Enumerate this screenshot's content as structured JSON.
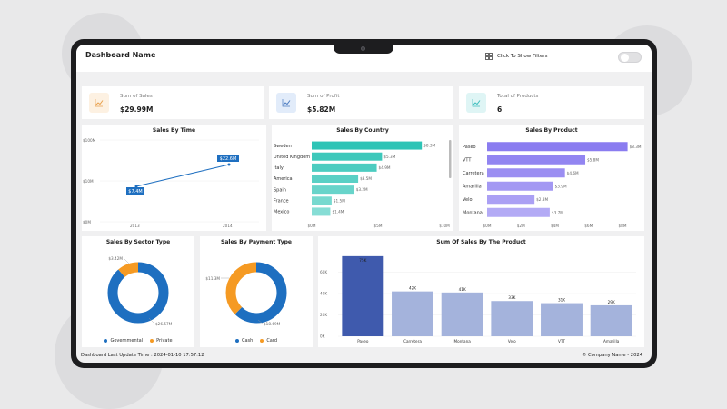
{
  "header": {
    "title": "Dashboard Name",
    "filter_label": "Click To Show Filters"
  },
  "kpis": [
    {
      "label": "Sum of Sales",
      "value": "$29.99M",
      "icon": "trend-chart-icon",
      "icon_bg": "#fdf1e2",
      "icon_color": "#e8a04c"
    },
    {
      "label": "Sum of Profit",
      "value": "$5.82M",
      "icon": "trend-chart-icon",
      "icon_bg": "#e2ecfa",
      "icon_color": "#4a7ac0"
    },
    {
      "label": "Total of Products",
      "value": "6",
      "icon": "trend-chart-icon",
      "icon_bg": "#dff5f5",
      "icon_color": "#3bbdbd"
    }
  ],
  "sales_by_time": {
    "title": "Sales By Time",
    "chart_data": {
      "type": "line",
      "x": [
        "2013",
        "2014"
      ],
      "y_ticks": [
        "$0M",
        "$10M",
        "$100M"
      ],
      "values": [
        7.4,
        22.6
      ],
      "data_labels": [
        "$7.4M",
        "$22.6M"
      ]
    }
  },
  "sales_by_country": {
    "title": "Sales By Country",
    "chart_data": {
      "type": "bar",
      "categories": [
        "Sweden",
        "United Kingdom",
        "Italy",
        "America",
        "Spain",
        "France",
        "Mexico"
      ],
      "values": [
        8.3,
        5.3,
        4.9,
        3.5,
        3.2,
        1.5,
        1.4
      ],
      "data_labels": [
        "$8.3M",
        "$5.3M",
        "$4.9M",
        "$3.5M",
        "$3.2M",
        "$1.5M",
        "$1.4M"
      ],
      "x_ticks": [
        "$0M",
        "$5M",
        "$10M"
      ],
      "xlim": [
        0,
        10
      ],
      "color": "#2ec4b6"
    }
  },
  "sales_by_product": {
    "title": "Sales By Product",
    "chart_data": {
      "type": "bar",
      "categories": [
        "Paseo",
        "VTT",
        "Carretera",
        "Amarilla",
        "Velo",
        "Montana"
      ],
      "values": [
        8.3,
        5.8,
        4.6,
        3.9,
        2.8,
        3.7
      ],
      "data_labels": [
        "$8.3M",
        "$5.8M",
        "$4.6M",
        "$3.9M",
        "$2.8M",
        "$3.7M"
      ],
      "x_ticks": [
        "$0M",
        "$2M",
        "$4M",
        "$6M",
        "$8M"
      ],
      "xlim": [
        0,
        8
      ],
      "color": "#8a7cf0"
    }
  },
  "sales_by_sector": {
    "title": "Sales By Sector Type",
    "chart_data": {
      "type": "pie",
      "categories": [
        "Governmental",
        "Private"
      ],
      "values": [
        26.57,
        3.42
      ],
      "data_labels": [
        "$26.57M",
        "$3.42M"
      ],
      "colors": [
        "#1e6fc0",
        "#f59a23"
      ]
    }
  },
  "sales_by_payment": {
    "title": "Sales By Payment Type",
    "chart_data": {
      "type": "pie",
      "categories": [
        "Cash",
        "Card"
      ],
      "values": [
        18.69,
        11.3
      ],
      "data_labels": [
        "$18.69M",
        "$11.3M"
      ],
      "colors": [
        "#1e6fc0",
        "#f59a23"
      ]
    }
  },
  "sum_of_sales_by_product": {
    "title": "Sum Of Sales By The Product",
    "chart_data": {
      "type": "bar",
      "categories": [
        "Paseo",
        "Carretera",
        "Montana",
        "Velo",
        "VTT",
        "Amarilla"
      ],
      "values": [
        75,
        42,
        41,
        33,
        31,
        29
      ],
      "data_labels": [
        "75K",
        "42K",
        "41K",
        "33K",
        "31K",
        "29K"
      ],
      "y_ticks": [
        "0K",
        "20K",
        "40K",
        "60K"
      ],
      "ylim": [
        0,
        80
      ]
    }
  },
  "footer": {
    "last_update": "Dashboard Last Update Time :  2024-01-10 17:57:12",
    "company": "© Company Name - 2024"
  }
}
